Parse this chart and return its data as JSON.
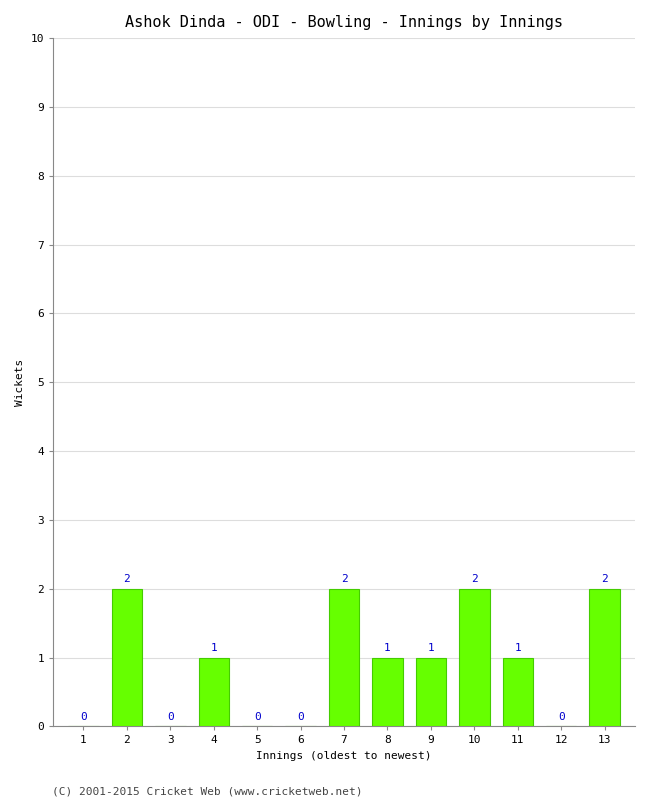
{
  "title": "Ashok Dinda - ODI - Bowling - Innings by Innings",
  "innings": [
    1,
    2,
    3,
    4,
    5,
    6,
    7,
    8,
    9,
    10,
    11,
    12,
    13
  ],
  "wickets": [
    0,
    2,
    0,
    1,
    0,
    0,
    2,
    1,
    1,
    2,
    1,
    0,
    2
  ],
  "bar_color": "#66ff00",
  "bar_edge_color": "#44cc00",
  "xlabel": "Innings (oldest to newest)",
  "ylabel": "Wickets",
  "ylim": [
    0,
    10
  ],
  "yticks": [
    0,
    1,
    2,
    3,
    4,
    5,
    6,
    7,
    8,
    9,
    10
  ],
  "label_color": "#0000cc",
  "label_fontsize": 8,
  "title_fontsize": 11,
  "axis_label_fontsize": 8,
  "tick_fontsize": 8,
  "bg_color": "#ffffff",
  "plot_bg_color": "#ffffff",
  "grid_color": "#dddddd",
  "footer": "(C) 2001-2015 Cricket Web (www.cricketweb.net)",
  "footer_fontsize": 8
}
